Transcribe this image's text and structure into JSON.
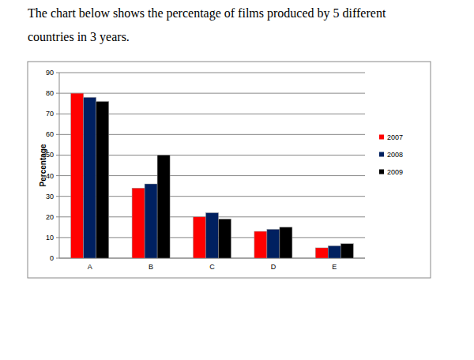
{
  "chart_data": {
    "type": "bar",
    "title": "The chart below shows the percentage of films produced by 5 different countries in 3 years.",
    "y_label": "Percentage",
    "categories": [
      "A",
      "B",
      "C",
      "D",
      "E"
    ],
    "series": [
      {
        "name": "2007",
        "color": "#ff0000",
        "values": [
          80,
          34,
          20,
          13,
          5
        ]
      },
      {
        "name": "2008",
        "color": "#002060",
        "values": [
          78,
          36,
          22,
          14,
          6
        ]
      },
      {
        "name": "2009",
        "color": "#000000",
        "values": [
          76,
          50,
          19,
          15,
          7
        ]
      }
    ],
    "ylim": [
      0,
      90
    ],
    "yticks": [
      0,
      10,
      20,
      30,
      40,
      50,
      60,
      70,
      80,
      90
    ],
    "grid": true,
    "legend": "right"
  }
}
